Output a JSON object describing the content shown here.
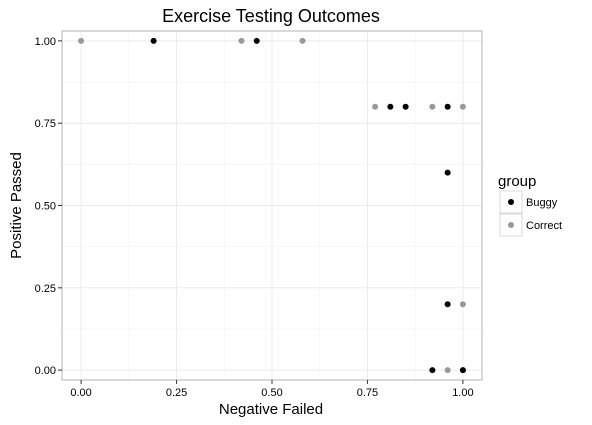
{
  "chart_data": {
    "type": "scatter",
    "title": "Exercise Testing Outcomes",
    "xlabel": "Negative Failed",
    "ylabel": "Positive Passed",
    "xlim": [
      -0.05,
      1.05
    ],
    "ylim": [
      -0.03,
      1.03
    ],
    "x_ticks": [
      {
        "value": 0.0,
        "label": "0.00"
      },
      {
        "value": 0.25,
        "label": "0.25"
      },
      {
        "value": 0.5,
        "label": "0.50"
      },
      {
        "value": 0.75,
        "label": "0.75"
      },
      {
        "value": 1.0,
        "label": "1.00"
      }
    ],
    "y_ticks": [
      {
        "value": 0.0,
        "label": "0.00"
      },
      {
        "value": 0.25,
        "label": "0.25"
      },
      {
        "value": 0.5,
        "label": "0.50"
      },
      {
        "value": 0.75,
        "label": "0.75"
      },
      {
        "value": 1.0,
        "label": "1.00"
      }
    ],
    "grid": true,
    "legend": {
      "title": "group",
      "position": "right"
    },
    "series": [
      {
        "name": "Buggy",
        "color": "#000000",
        "points": [
          {
            "x": 0.19,
            "y": 1.0
          },
          {
            "x": 0.46,
            "y": 1.0
          },
          {
            "x": 0.81,
            "y": 0.8
          },
          {
            "x": 0.85,
            "y": 0.8
          },
          {
            "x": 0.96,
            "y": 0.8
          },
          {
            "x": 0.96,
            "y": 0.6
          },
          {
            "x": 0.96,
            "y": 0.2
          },
          {
            "x": 0.92,
            "y": 0.0
          },
          {
            "x": 1.0,
            "y": 0.0
          }
        ]
      },
      {
        "name": "Correct",
        "color": "#999999",
        "points": [
          {
            "x": 0.0,
            "y": 1.0
          },
          {
            "x": 0.42,
            "y": 1.0
          },
          {
            "x": 0.58,
            "y": 1.0
          },
          {
            "x": 0.77,
            "y": 0.8
          },
          {
            "x": 0.92,
            "y": 0.8
          },
          {
            "x": 1.0,
            "y": 0.8
          },
          {
            "x": 1.0,
            "y": 0.2
          },
          {
            "x": 0.96,
            "y": 0.0
          },
          {
            "x": 1.0,
            "y": 0.0
          }
        ]
      }
    ]
  }
}
